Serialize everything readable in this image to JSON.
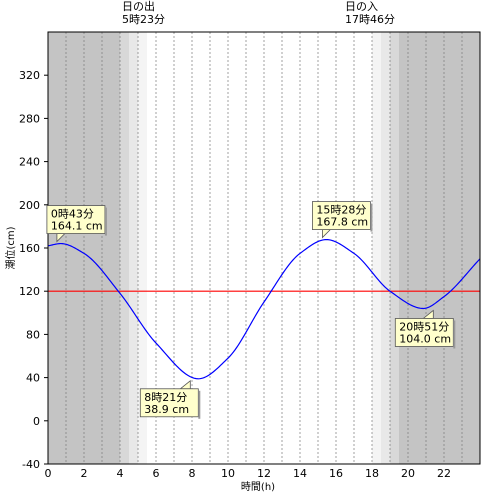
{
  "chart_data": {
    "type": "line",
    "xlabel": "時間(h)",
    "ylabel": "潮位(cm)",
    "xlim": [
      0,
      24
    ],
    "ylim": [
      -40,
      360
    ],
    "x_ticks": [
      0,
      2,
      4,
      6,
      8,
      10,
      12,
      14,
      16,
      18,
      20,
      22
    ],
    "y_ticks": [
      -40,
      0,
      40,
      80,
      120,
      160,
      200,
      240,
      280,
      320
    ],
    "grid": "vertical dotted every hour",
    "reference_line": {
      "value": 120,
      "color": "#ff0000"
    },
    "line_color": "#0000ff",
    "sunrise": {
      "label": "日の出",
      "time": "5時23分",
      "hour": 5.383
    },
    "sunset": {
      "label": "日の入",
      "time": "17時46分",
      "hour": 17.767
    },
    "night_shading": [
      {
        "from": 0,
        "to": 4.0,
        "color": "#c4c4c4"
      },
      {
        "from": 4.0,
        "to": 4.5,
        "color": "#d8d8d8"
      },
      {
        "from": 4.5,
        "to": 5.0,
        "color": "#e8e8e8"
      },
      {
        "from": 5.0,
        "to": 5.5,
        "color": "#f4f4f4"
      },
      {
        "from": 18.0,
        "to": 18.5,
        "color": "#f4f4f4"
      },
      {
        "from": 18.5,
        "to": 19.0,
        "color": "#e8e8e8"
      },
      {
        "from": 19.0,
        "to": 19.5,
        "color": "#d8d8d8"
      },
      {
        "from": 19.5,
        "to": 24,
        "color": "#c4c4c4"
      }
    ],
    "extrema": [
      {
        "kind": "high",
        "time": "0時43分",
        "value": "164.1 cm",
        "hour": 0.717,
        "height": 164.1
      },
      {
        "kind": "low",
        "time": "8時21分",
        "value": "38.9 cm",
        "hour": 8.35,
        "height": 38.9
      },
      {
        "kind": "high",
        "time": "15時28分",
        "value": "167.8 cm",
        "hour": 15.467,
        "height": 167.8
      },
      {
        "kind": "low",
        "time": "20時51分",
        "value": "104.0 cm",
        "hour": 20.85,
        "height": 104.0
      }
    ],
    "series": [
      {
        "x": [
          0,
          0.717,
          2,
          4,
          6,
          8.35,
          10,
          12,
          14,
          15.467,
          17,
          19,
          20.85,
          22,
          24
        ],
        "y": [
          162,
          164.1,
          155,
          118,
          72,
          38.9,
          58,
          110,
          155,
          167.8,
          155,
          120,
          104.0,
          115,
          150
        ]
      }
    ]
  }
}
